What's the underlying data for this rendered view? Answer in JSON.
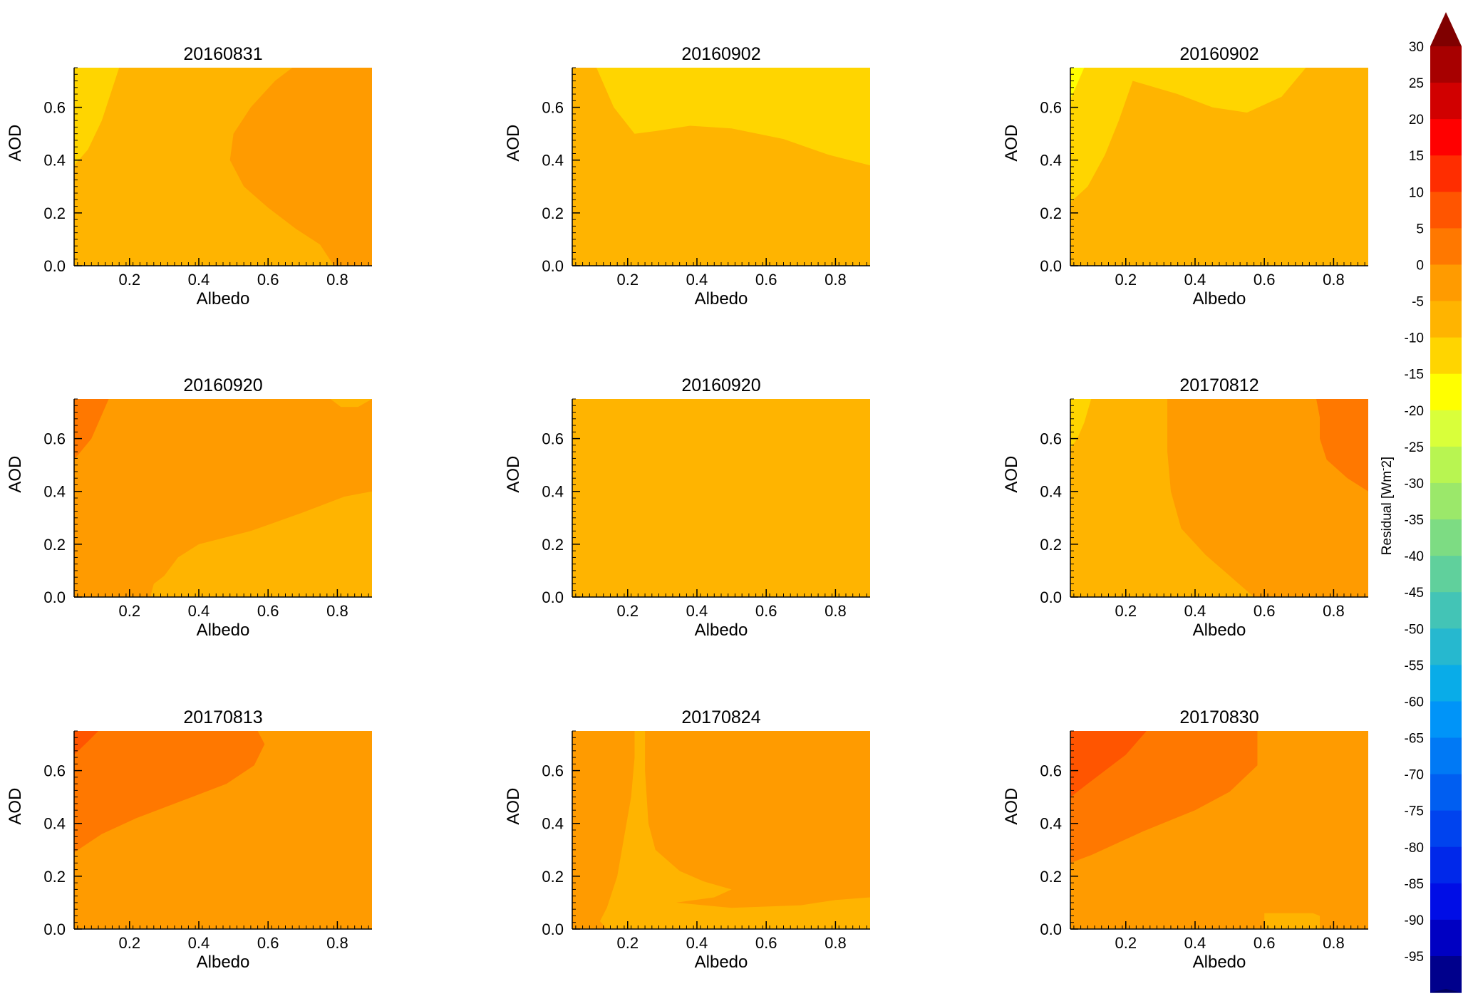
{
  "chart_data": {
    "type": "contour",
    "xlabel": "Albedo",
    "ylabel": "AOD",
    "xlim": [
      0.04,
      0.9
    ],
    "ylim": [
      0.0,
      0.75
    ],
    "x_ticks": [
      "0.2",
      "0.4",
      "0.6",
      "0.8"
    ],
    "y_ticks": [
      "0.0",
      "0.2",
      "0.4",
      "0.6"
    ],
    "panels": [
      {
        "title": "20160831",
        "base_level": -5,
        "regions": [
          {
            "level": -10,
            "points": [
              [
                0.04,
                0.75
              ],
              [
                0.17,
                0.75
              ],
              [
                0.12,
                0.55
              ],
              [
                0.08,
                0.44
              ],
              [
                0.04,
                0.38
              ]
            ]
          },
          {
            "level": 0,
            "points": [
              [
                0.67,
                0.75
              ],
              [
                0.9,
                0.75
              ],
              [
                0.9,
                0.0
              ],
              [
                0.79,
                0.0
              ],
              [
                0.75,
                0.08
              ],
              [
                0.68,
                0.14
              ],
              [
                0.6,
                0.22
              ],
              [
                0.53,
                0.3
              ],
              [
                0.49,
                0.4
              ],
              [
                0.5,
                0.5
              ],
              [
                0.55,
                0.6
              ],
              [
                0.62,
                0.7
              ]
            ]
          }
        ]
      },
      {
        "title": "20160902",
        "base_level": -5,
        "regions": [
          {
            "level": -10,
            "points": [
              [
                0.11,
                0.75
              ],
              [
                0.9,
                0.75
              ],
              [
                0.9,
                0.38
              ],
              [
                0.78,
                0.42
              ],
              [
                0.65,
                0.48
              ],
              [
                0.5,
                0.52
              ],
              [
                0.38,
                0.53
              ],
              [
                0.28,
                0.51
              ],
              [
                0.22,
                0.5
              ],
              [
                0.16,
                0.6
              ]
            ]
          }
        ]
      },
      {
        "title": "20160902",
        "base_level": -5,
        "regions": [
          {
            "level": -10,
            "points": [
              [
                0.04,
                0.75
              ],
              [
                0.72,
                0.75
              ],
              [
                0.65,
                0.64
              ],
              [
                0.55,
                0.58
              ],
              [
                0.45,
                0.6
              ],
              [
                0.35,
                0.65
              ],
              [
                0.22,
                0.7
              ],
              [
                0.18,
                0.55
              ],
              [
                0.14,
                0.42
              ],
              [
                0.09,
                0.3
              ],
              [
                0.04,
                0.24
              ]
            ]
          },
          {
            "level": -15,
            "points": [
              [
                0.04,
                0.75
              ],
              [
                0.08,
                0.75
              ],
              [
                0.05,
                0.66
              ],
              [
                0.04,
                0.63
              ]
            ]
          }
        ]
      },
      {
        "title": "20160920",
        "base_level": 0,
        "regions": [
          {
            "level": -5,
            "points": [
              [
                0.9,
                0.0
              ],
              [
                0.9,
                0.4
              ],
              [
                0.82,
                0.38
              ],
              [
                0.7,
                0.32
              ],
              [
                0.55,
                0.25
              ],
              [
                0.4,
                0.2
              ],
              [
                0.34,
                0.15
              ],
              [
                0.3,
                0.08
              ],
              [
                0.27,
                0.05
              ],
              [
                0.26,
                0.0
              ]
            ]
          },
          {
            "level": -5,
            "points": [
              [
                0.78,
                0.75
              ],
              [
                0.9,
                0.75
              ],
              [
                0.86,
                0.72
              ],
              [
                0.81,
                0.72
              ]
            ]
          },
          {
            "level": 5,
            "points": [
              [
                0.04,
                0.75
              ],
              [
                0.14,
                0.75
              ],
              [
                0.09,
                0.6
              ],
              [
                0.04,
                0.52
              ]
            ]
          }
        ]
      },
      {
        "title": "20160920",
        "base_level": -5,
        "regions": []
      },
      {
        "title": "20170812",
        "base_level": -5,
        "regions": [
          {
            "level": -10,
            "points": [
              [
                0.04,
                0.75
              ],
              [
                0.1,
                0.75
              ],
              [
                0.08,
                0.66
              ],
              [
                0.06,
                0.6
              ],
              [
                0.04,
                0.56
              ]
            ]
          },
          {
            "level": 0,
            "points": [
              [
                0.32,
                0.75
              ],
              [
                0.9,
                0.75
              ],
              [
                0.9,
                0.0
              ],
              [
                0.57,
                0.0
              ],
              [
                0.5,
                0.08
              ],
              [
                0.43,
                0.16
              ],
              [
                0.36,
                0.26
              ],
              [
                0.33,
                0.4
              ],
              [
                0.32,
                0.55
              ],
              [
                0.32,
                0.68
              ]
            ]
          },
          {
            "level": 5,
            "points": [
              [
                0.75,
                0.75
              ],
              [
                0.9,
                0.75
              ],
              [
                0.9,
                0.4
              ],
              [
                0.84,
                0.45
              ],
              [
                0.78,
                0.52
              ],
              [
                0.76,
                0.6
              ],
              [
                0.76,
                0.68
              ]
            ]
          }
        ]
      },
      {
        "title": "20170813",
        "base_level": 0,
        "regions": [
          {
            "level": 5,
            "points": [
              [
                0.04,
                0.75
              ],
              [
                0.57,
                0.75
              ],
              [
                0.59,
                0.7
              ],
              [
                0.56,
                0.62
              ],
              [
                0.48,
                0.55
              ],
              [
                0.38,
                0.5
              ],
              [
                0.22,
                0.42
              ],
              [
                0.12,
                0.36
              ],
              [
                0.04,
                0.29
              ]
            ]
          },
          {
            "level": 10,
            "points": [
              [
                0.04,
                0.75
              ],
              [
                0.11,
                0.75
              ],
              [
                0.08,
                0.71
              ],
              [
                0.04,
                0.66
              ]
            ]
          }
        ]
      },
      {
        "title": "20170824",
        "base_level": 0,
        "regions": [
          {
            "level": -5,
            "points": [
              [
                0.22,
                0.75
              ],
              [
                0.25,
                0.75
              ],
              [
                0.25,
                0.6
              ],
              [
                0.26,
                0.4
              ],
              [
                0.28,
                0.3
              ],
              [
                0.35,
                0.22
              ],
              [
                0.42,
                0.18
              ],
              [
                0.5,
                0.15
              ],
              [
                0.45,
                0.12
              ],
              [
                0.34,
                0.1
              ],
              [
                0.5,
                0.08
              ],
              [
                0.7,
                0.09
              ],
              [
                0.8,
                0.11
              ],
              [
                0.9,
                0.12
              ],
              [
                0.9,
                0.0
              ],
              [
                0.14,
                0.0
              ],
              [
                0.12,
                0.03
              ],
              [
                0.14,
                0.08
              ],
              [
                0.17,
                0.2
              ],
              [
                0.19,
                0.35
              ],
              [
                0.21,
                0.5
              ],
              [
                0.22,
                0.65
              ]
            ]
          }
        ]
      },
      {
        "title": "20170830",
        "base_level": 0,
        "regions": [
          {
            "level": 5,
            "points": [
              [
                0.04,
                0.75
              ],
              [
                0.58,
                0.75
              ],
              [
                0.58,
                0.62
              ],
              [
                0.5,
                0.52
              ],
              [
                0.4,
                0.45
              ],
              [
                0.25,
                0.37
              ],
              [
                0.1,
                0.28
              ],
              [
                0.04,
                0.25
              ]
            ]
          },
          {
            "level": 10,
            "points": [
              [
                0.04,
                0.75
              ],
              [
                0.26,
                0.75
              ],
              [
                0.2,
                0.66
              ],
              [
                0.1,
                0.56
              ],
              [
                0.04,
                0.5
              ]
            ]
          },
          {
            "level": -5,
            "points": [
              [
                0.6,
                0.06
              ],
              [
                0.74,
                0.06
              ],
              [
                0.76,
                0.05
              ],
              [
                0.76,
                0.0
              ],
              [
                0.6,
                0.0
              ]
            ]
          }
        ]
      }
    ]
  },
  "colorbar": {
    "label": "Residual [Wm",
    "label_sup": "-",
    "label_end": "2]",
    "tick_labels": [
      "30",
      "25",
      "20",
      "15",
      "10",
      "5",
      "0",
      "-5",
      "-10",
      "-15",
      "-20",
      "-25",
      "-30",
      "-35",
      "-40",
      "-45",
      "-50",
      "-55",
      "-60",
      "-65",
      "-70",
      "-75",
      "-80",
      "-85",
      "-90",
      "-95"
    ],
    "colors": [
      "#a70000",
      "#d10000",
      "#ff0000",
      "#ff2d00",
      "#ff5500",
      "#ff7800",
      "#ff9b00",
      "#ffb400",
      "#ffd500",
      "#ffff00",
      "#d9ff3a",
      "#b8f551",
      "#9be86a",
      "#7ddc83",
      "#60d09c",
      "#43c4b6",
      "#26b8cf",
      "#09ace8",
      "#0094f8",
      "#0079f5",
      "#005ef1",
      "#0043ee",
      "#0028ea",
      "#000de6",
      "#0000c2",
      "#00008c"
    ],
    "top_arrow_color": "#800000",
    "bottom_arrow_color": "#00005e"
  }
}
